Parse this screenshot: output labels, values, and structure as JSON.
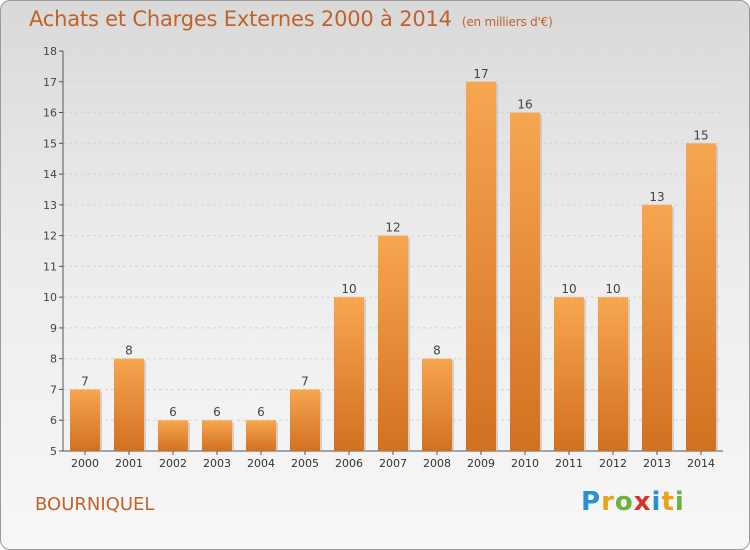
{
  "header": {
    "title": "Achats et Charges Externes 2000 à 2014",
    "unit": "(en milliers d'€)"
  },
  "footer": {
    "location": "BOURNIQUEL",
    "brand_letters": [
      "P",
      "r",
      "o",
      "x",
      "i",
      "t",
      "i"
    ],
    "brand_colors": [
      "#2a8fd1",
      "#e8a21c",
      "#6bb33a",
      "#d9342b",
      "#2a8fd1",
      "#e8a21c",
      "#6bb33a"
    ]
  },
  "colors": {
    "bar_light": "#f7a650",
    "bar_dark": "#d2711f",
    "text": "#c0622a"
  },
  "chart_data": {
    "type": "bar",
    "title": "Achats et Charges Externes 2000 à 2014",
    "subtitle": "(en milliers d'€)",
    "xlabel": "",
    "ylabel": "",
    "categories": [
      "2000",
      "2001",
      "2002",
      "2003",
      "2004",
      "2005",
      "2006",
      "2007",
      "2008",
      "2009",
      "2010",
      "2011",
      "2012",
      "2013",
      "2014"
    ],
    "values": [
      7,
      8,
      6,
      6,
      6,
      7,
      10,
      12,
      8,
      17,
      16,
      10,
      10,
      13,
      15
    ],
    "ylim": [
      5,
      18
    ],
    "yticks": [
      5,
      6,
      7,
      8,
      9,
      10,
      11,
      12,
      13,
      14,
      15,
      16,
      17,
      18
    ],
    "grid": true,
    "legend": "none"
  }
}
